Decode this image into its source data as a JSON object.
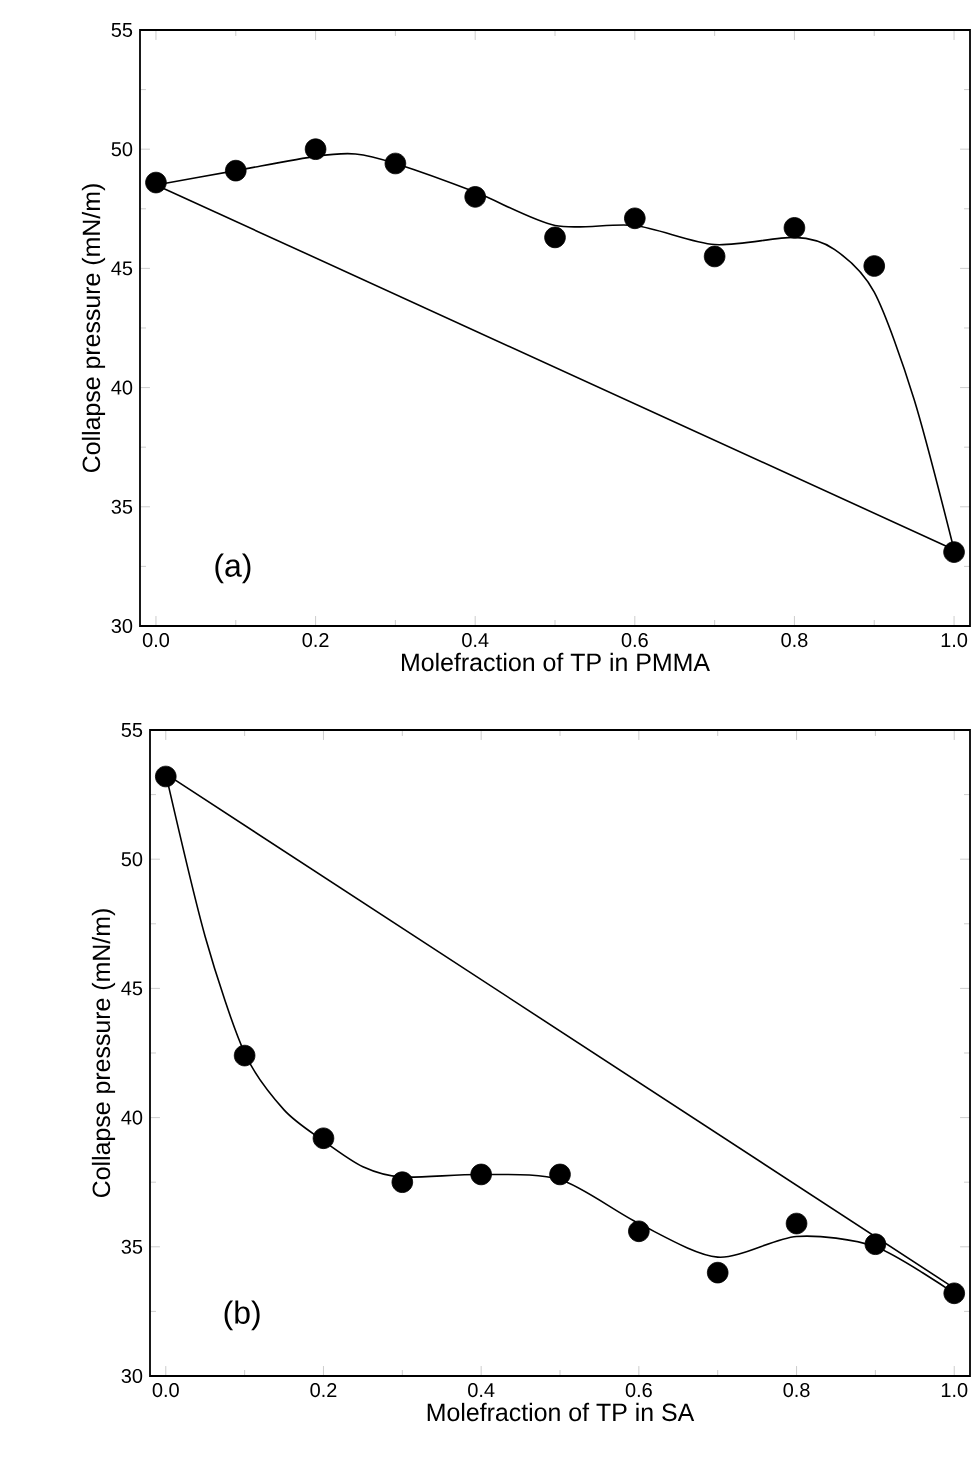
{
  "chart_data": [
    {
      "type": "scatter",
      "xlabel": "Molefraction of TP in PMMA",
      "ylabel": "Collapse pressure (mN/m)",
      "annotations": [
        "(a)"
      ],
      "xlim": [
        -0.02,
        1.02
      ],
      "ylim": [
        30,
        55
      ],
      "xticks": [
        {
          "value": 0,
          "label": "0.0"
        },
        {
          "value": 0.2,
          "label": "0.2"
        },
        {
          "value": 0.4,
          "label": "0.4"
        },
        {
          "value": 0.6,
          "label": "0.6"
        },
        {
          "value": 0.8,
          "label": "0.8"
        },
        {
          "value": 1,
          "label": "1.0"
        }
      ],
      "yticks": [
        30,
        35,
        40,
        45,
        50,
        55
      ],
      "series": [
        {
          "marker": "circle",
          "color": "#000000",
          "x": [
            0,
            0.1,
            0.2,
            0.3,
            0.4,
            0.5,
            0.6,
            0.7,
            0.8,
            0.9,
            1.0
          ],
          "values": [
            48.6,
            49.1,
            50.0,
            49.4,
            48.0,
            46.3,
            47.1,
            45.5,
            46.7,
            45.1,
            33.1
          ]
        },
        {
          "type": "line",
          "marker": "none",
          "color": "#000000",
          "x": [
            0,
            0.1,
            0.2,
            0.25,
            0.3,
            0.4,
            0.5,
            0.6,
            0.7,
            0.8,
            0.85,
            0.9,
            0.95,
            1.0
          ],
          "values": [
            48.5,
            49.1,
            49.7,
            49.8,
            49.4,
            48.2,
            46.8,
            46.8,
            46.0,
            46.3,
            45.8,
            44.0,
            39.5,
            33.2
          ]
        },
        {
          "type": "line",
          "marker": "none",
          "color": "#000000",
          "x": [
            0,
            1
          ],
          "values": [
            48.5,
            33.2
          ]
        }
      ]
    },
    {
      "type": "scatter",
      "xlabel": "Molefraction of TP in SA",
      "ylabel": "Collapse pressure (mN/m)",
      "annotations": [
        "(b)"
      ],
      "xlim": [
        -0.02,
        1.02
      ],
      "ylim": [
        30,
        55
      ],
      "xticks": [
        {
          "value": 0,
          "label": "0.0"
        },
        {
          "value": 0.2,
          "label": "0.2"
        },
        {
          "value": 0.4,
          "label": "0.4"
        },
        {
          "value": 0.6,
          "label": "0.6"
        },
        {
          "value": 0.8,
          "label": "0.8"
        },
        {
          "value": 1,
          "label": "1.0"
        }
      ],
      "yticks": [
        30,
        35,
        40,
        45,
        50,
        55
      ],
      "series": [
        {
          "marker": "circle",
          "color": "#000000",
          "x": [
            0,
            0.1,
            0.2,
            0.3,
            0.4,
            0.5,
            0.6,
            0.7,
            0.8,
            0.9,
            1.0
          ],
          "values": [
            53.2,
            42.4,
            39.2,
            37.5,
            37.8,
            37.8,
            35.6,
            34.0,
            35.9,
            35.1,
            33.2
          ]
        },
        {
          "type": "line",
          "marker": "none",
          "color": "#000000",
          "x": [
            0,
            0.05,
            0.1,
            0.15,
            0.2,
            0.25,
            0.3,
            0.4,
            0.5,
            0.6,
            0.7,
            0.8,
            0.9,
            1.0
          ],
          "values": [
            53.3,
            47.0,
            42.5,
            40.3,
            39.1,
            38.1,
            37.7,
            37.8,
            37.6,
            35.9,
            34.6,
            35.4,
            35.0,
            33.2
          ]
        },
        {
          "type": "line",
          "marker": "none",
          "color": "#000000",
          "x": [
            0,
            1
          ],
          "values": [
            53.3,
            33.4
          ]
        }
      ]
    }
  ]
}
